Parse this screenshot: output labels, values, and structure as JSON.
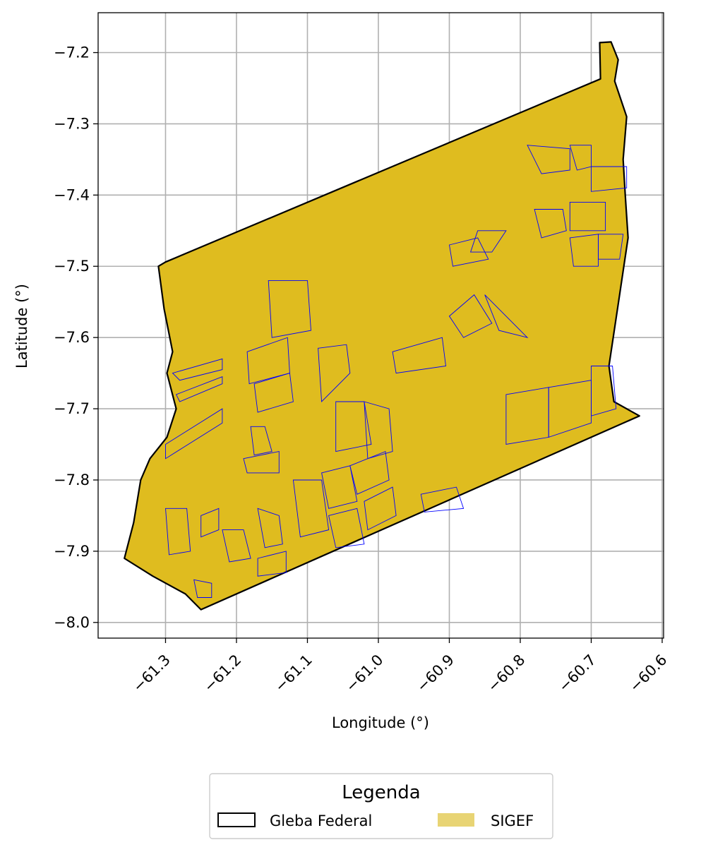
{
  "chart_data": {
    "type": "map",
    "xlabel": "Longitude (°)",
    "ylabel": "Latitude (°)",
    "xlim": [
      -61.395,
      -60.598
    ],
    "ylim": [
      -8.022,
      -7.144
    ],
    "x_ticks": [
      -61.3,
      -61.2,
      -61.1,
      -61.0,
      -60.9,
      -60.8,
      -60.7,
      -60.6
    ],
    "x_tick_labels": [
      "−61.3",
      "−61.2",
      "−61.1",
      "−61.0",
      "−60.9",
      "−60.8",
      "−60.7",
      "−60.6"
    ],
    "y_ticks": [
      -7.2,
      -7.3,
      -7.4,
      -7.5,
      -7.6,
      -7.7,
      -7.8,
      -7.9,
      -8.0
    ],
    "y_tick_labels": [
      "−7.2",
      "−7.3",
      "−7.4",
      "−7.5",
      "−7.6",
      "−7.7",
      "−7.8",
      "−7.9",
      "−8.0"
    ],
    "grid": true,
    "legend": {
      "title": "Legenda",
      "placement": "bottom-center",
      "entries": [
        {
          "label": "Gleba Federal",
          "style": "outline"
        },
        {
          "label": "SIGEF",
          "style": "fill"
        }
      ]
    },
    "colors": {
      "gleba_outline": "#000000",
      "sigef_fill": "#dfbc1f",
      "sigef_legend_fill": "#e8d474",
      "parcel_edges": "#0000ff",
      "grid": "#b0b0b0"
    },
    "gleba_boundary": [
      [
        -61.3,
        -7.494
      ],
      [
        -60.687,
        -7.237
      ],
      [
        -60.688,
        -7.186
      ],
      [
        -60.672,
        -7.185
      ],
      [
        -60.662,
        -7.21
      ],
      [
        -60.667,
        -7.24
      ],
      [
        -60.65,
        -7.29
      ],
      [
        -60.655,
        -7.35
      ],
      [
        -60.652,
        -7.4
      ],
      [
        -60.648,
        -7.46
      ],
      [
        -60.66,
        -7.54
      ],
      [
        -60.675,
        -7.64
      ],
      [
        -60.668,
        -7.69
      ],
      [
        -60.632,
        -7.71
      ],
      [
        -61.25,
        -7.982
      ],
      [
        -61.272,
        -7.96
      ],
      [
        -61.318,
        -7.935
      ],
      [
        -61.358,
        -7.91
      ],
      [
        -61.345,
        -7.86
      ],
      [
        -61.335,
        -7.8
      ],
      [
        -61.322,
        -7.77
      ],
      [
        -61.298,
        -7.74
      ],
      [
        -61.285,
        -7.7
      ],
      [
        -61.298,
        -7.65
      ],
      [
        -61.29,
        -7.62
      ],
      [
        -61.302,
        -7.56
      ],
      [
        -61.31,
        -7.5
      ]
    ],
    "sigef_parcels": [
      [
        [
          -61.29,
          -7.65
        ],
        [
          -61.22,
          -7.63
        ],
        [
          -61.22,
          -7.645
        ],
        [
          -61.28,
          -7.66
        ]
      ],
      [
        [
          -61.285,
          -7.68
        ],
        [
          -61.22,
          -7.655
        ],
        [
          -61.22,
          -7.665
        ],
        [
          -61.28,
          -7.69
        ]
      ],
      [
        [
          -61.3,
          -7.75
        ],
        [
          -61.22,
          -7.7
        ],
        [
          -61.22,
          -7.72
        ],
        [
          -61.3,
          -7.77
        ]
      ],
      [
        [
          -61.185,
          -7.62
        ],
        [
          -61.128,
          -7.6
        ],
        [
          -61.125,
          -7.65
        ],
        [
          -61.182,
          -7.665
        ]
      ],
      [
        [
          -61.175,
          -7.665
        ],
        [
          -61.125,
          -7.65
        ],
        [
          -61.12,
          -7.69
        ],
        [
          -61.17,
          -7.705
        ]
      ],
      [
        [
          -61.155,
          -7.52
        ],
        [
          -61.1,
          -7.52
        ],
        [
          -61.095,
          -7.59
        ],
        [
          -61.15,
          -7.6
        ]
      ],
      [
        [
          -61.085,
          -7.615
        ],
        [
          -61.045,
          -7.61
        ],
        [
          -61.04,
          -7.65
        ],
        [
          -61.08,
          -7.69
        ]
      ],
      [
        [
          -61.06,
          -7.69
        ],
        [
          -61.02,
          -7.69
        ],
        [
          -61.01,
          -7.75
        ],
        [
          -61.06,
          -7.76
        ]
      ],
      [
        [
          -61.02,
          -7.69
        ],
        [
          -60.985,
          -7.7
        ],
        [
          -60.98,
          -7.76
        ],
        [
          -61.015,
          -7.77
        ]
      ],
      [
        [
          -60.98,
          -7.62
        ],
        [
          -60.91,
          -7.6
        ],
        [
          -60.905,
          -7.64
        ],
        [
          -60.975,
          -7.65
        ]
      ],
      [
        [
          -60.9,
          -7.57
        ],
        [
          -60.865,
          -7.54
        ],
        [
          -60.84,
          -7.58
        ],
        [
          -60.88,
          -7.6
        ]
      ],
      [
        [
          -60.85,
          -7.54
        ],
        [
          -60.82,
          -7.57
        ],
        [
          -60.79,
          -7.6
        ],
        [
          -60.83,
          -7.59
        ]
      ],
      [
        [
          -60.9,
          -7.47
        ],
        [
          -60.86,
          -7.46
        ],
        [
          -60.845,
          -7.49
        ],
        [
          -60.895,
          -7.5
        ]
      ],
      [
        [
          -60.86,
          -7.45
        ],
        [
          -60.82,
          -7.45
        ],
        [
          -60.84,
          -7.48
        ],
        [
          -60.87,
          -7.48
        ]
      ],
      [
        [
          -60.79,
          -7.33
        ],
        [
          -60.73,
          -7.335
        ],
        [
          -60.73,
          -7.365
        ],
        [
          -60.77,
          -7.37
        ]
      ],
      [
        [
          -60.73,
          -7.33
        ],
        [
          -60.7,
          -7.33
        ],
        [
          -60.7,
          -7.36
        ],
        [
          -60.72,
          -7.365
        ]
      ],
      [
        [
          -60.7,
          -7.36
        ],
        [
          -60.65,
          -7.36
        ],
        [
          -60.65,
          -7.39
        ],
        [
          -60.7,
          -7.395
        ]
      ],
      [
        [
          -60.78,
          -7.42
        ],
        [
          -60.74,
          -7.42
        ],
        [
          -60.735,
          -7.45
        ],
        [
          -60.77,
          -7.46
        ]
      ],
      [
        [
          -60.73,
          -7.41
        ],
        [
          -60.68,
          -7.41
        ],
        [
          -60.68,
          -7.45
        ],
        [
          -60.73,
          -7.45
        ]
      ],
      [
        [
          -60.73,
          -7.46
        ],
        [
          -60.69,
          -7.455
        ],
        [
          -60.69,
          -7.5
        ],
        [
          -60.725,
          -7.5
        ]
      ],
      [
        [
          -60.69,
          -7.455
        ],
        [
          -60.655,
          -7.455
        ],
        [
          -60.66,
          -7.49
        ],
        [
          -60.69,
          -7.49
        ]
      ],
      [
        [
          -60.82,
          -7.68
        ],
        [
          -60.76,
          -7.67
        ],
        [
          -60.76,
          -7.74
        ],
        [
          -60.82,
          -7.75
        ]
      ],
      [
        [
          -60.76,
          -7.67
        ],
        [
          -60.7,
          -7.66
        ],
        [
          -60.7,
          -7.72
        ],
        [
          -60.76,
          -7.74
        ]
      ],
      [
        [
          -60.7,
          -7.64
        ],
        [
          -60.67,
          -7.64
        ],
        [
          -60.665,
          -7.7
        ],
        [
          -60.7,
          -7.71
        ]
      ],
      [
        [
          -61.25,
          -7.85
        ],
        [
          -61.225,
          -7.84
        ],
        [
          -61.225,
          -7.87
        ],
        [
          -61.25,
          -7.88
        ]
      ],
      [
        [
          -61.3,
          -7.84
        ],
        [
          -61.27,
          -7.84
        ],
        [
          -61.265,
          -7.9
        ],
        [
          -61.295,
          -7.905
        ]
      ],
      [
        [
          -61.22,
          -7.87
        ],
        [
          -61.19,
          -7.87
        ],
        [
          -61.18,
          -7.91
        ],
        [
          -61.21,
          -7.915
        ]
      ],
      [
        [
          -61.17,
          -7.84
        ],
        [
          -61.14,
          -7.85
        ],
        [
          -61.135,
          -7.89
        ],
        [
          -61.16,
          -7.895
        ]
      ],
      [
        [
          -61.12,
          -7.8
        ],
        [
          -61.08,
          -7.8
        ],
        [
          -61.07,
          -7.87
        ],
        [
          -61.11,
          -7.88
        ]
      ],
      [
        [
          -61.08,
          -7.79
        ],
        [
          -61.04,
          -7.78
        ],
        [
          -61.03,
          -7.83
        ],
        [
          -61.07,
          -7.84
        ]
      ],
      [
        [
          -61.04,
          -7.78
        ],
        [
          -60.99,
          -7.76
        ],
        [
          -60.985,
          -7.8
        ],
        [
          -61.03,
          -7.82
        ]
      ],
      [
        [
          -61.07,
          -7.85
        ],
        [
          -61.03,
          -7.84
        ],
        [
          -61.02,
          -7.89
        ],
        [
          -61.06,
          -7.895
        ]
      ],
      [
        [
          -61.02,
          -7.83
        ],
        [
          -60.98,
          -7.81
        ],
        [
          -60.975,
          -7.85
        ],
        [
          -61.015,
          -7.87
        ]
      ],
      [
        [
          -61.17,
          -7.91
        ],
        [
          -61.13,
          -7.9
        ],
        [
          -61.13,
          -7.93
        ],
        [
          -61.17,
          -7.935
        ]
      ],
      [
        [
          -61.26,
          -7.94
        ],
        [
          -61.235,
          -7.945
        ],
        [
          -61.235,
          -7.965
        ],
        [
          -61.255,
          -7.965
        ]
      ],
      [
        [
          -60.94,
          -7.82
        ],
        [
          -60.89,
          -7.81
        ],
        [
          -60.88,
          -7.84
        ],
        [
          -60.935,
          -7.845
        ]
      ],
      [
        [
          -61.18,
          -7.725
        ],
        [
          -61.16,
          -7.725
        ],
        [
          -61.15,
          -7.76
        ],
        [
          -61.175,
          -7.765
        ]
      ],
      [
        [
          -61.19,
          -7.77
        ],
        [
          -61.14,
          -7.76
        ],
        [
          -61.14,
          -7.79
        ],
        [
          -61.185,
          -7.79
        ]
      ]
    ]
  }
}
